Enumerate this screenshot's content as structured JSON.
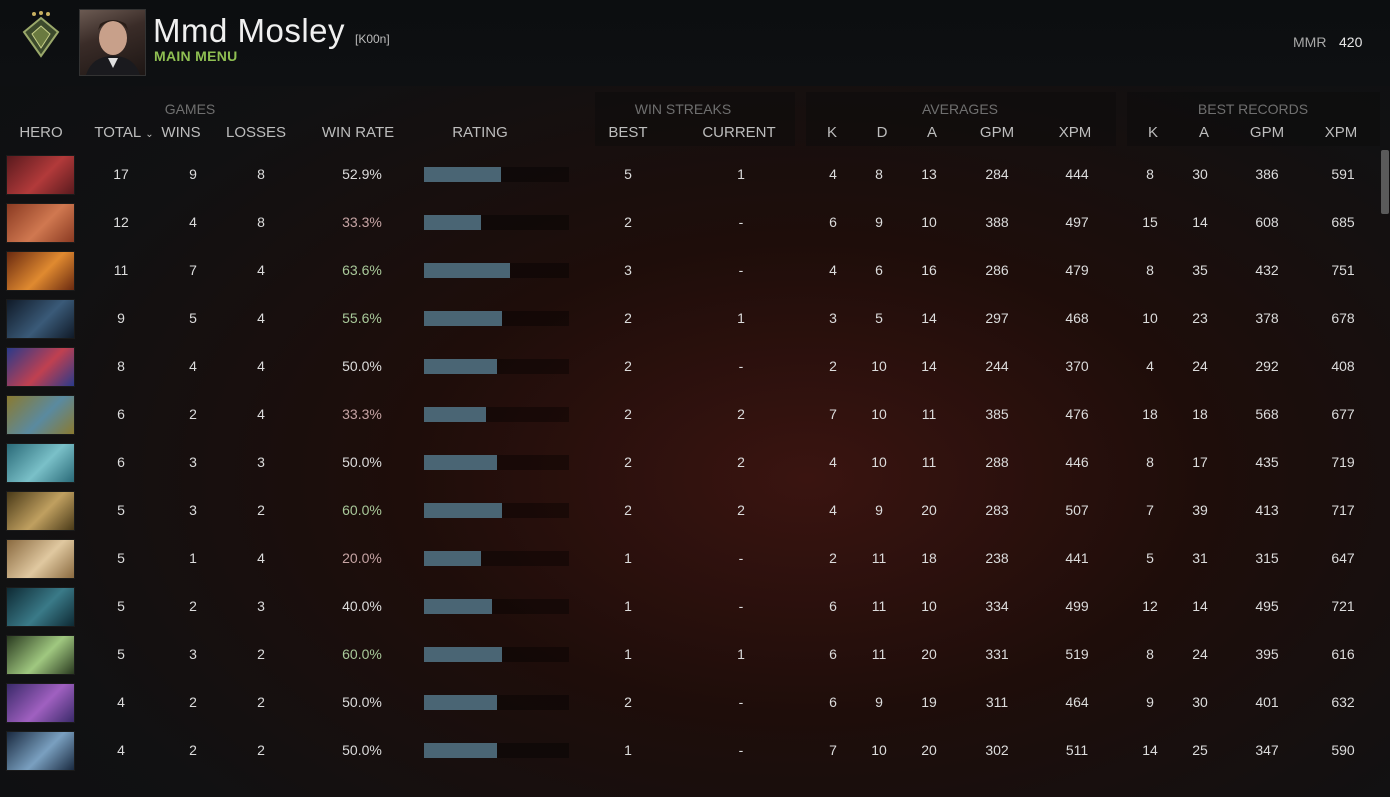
{
  "player": {
    "name": "Mmd Mosley",
    "tag": "[K00n]",
    "menu_label": "MAIN MENU",
    "mmr_label": "MMR",
    "mmr_value": "420"
  },
  "groups": {
    "games": "GAMES",
    "win_streaks": "WIN STREAKS",
    "averages": "AVERAGES",
    "best_records": "BEST RECORDS"
  },
  "columns": {
    "hero": "HERO",
    "total": "TOTAL",
    "wins": "WINS",
    "losses": "LOSSES",
    "win_rate": "WIN RATE",
    "rating": "RATING",
    "best": "BEST",
    "current": "CURRENT",
    "avg_k": "K",
    "avg_d": "D",
    "avg_a": "A",
    "avg_gpm": "GPM",
    "avg_xpm": "XPM",
    "best_k": "K",
    "best_a": "A",
    "best_gpm": "GPM",
    "best_xpm": "XPM"
  },
  "rows": [
    {
      "hero": "bloodseeker-icon",
      "colors": [
        "#5a1a1e",
        "#b23a3a"
      ],
      "total": "17",
      "wins": "9",
      "losses": "8",
      "win_rate": "52.9%",
      "wr_tone": "neutral",
      "rating": 0.53,
      "ws_best": "5",
      "ws_current": "1",
      "k": "4",
      "d": "8",
      "a": "13",
      "gpm": "284",
      "xpm": "444",
      "bk": "8",
      "ba": "30",
      "bgpm": "386",
      "bxpm": "591"
    },
    {
      "hero": "axe-icon",
      "colors": [
        "#8a3a22",
        "#d07850"
      ],
      "total": "12",
      "wins": "4",
      "losses": "8",
      "win_rate": "33.3%",
      "wr_tone": "red",
      "rating": 0.39,
      "ws_best": "2",
      "ws_current": "-",
      "k": "6",
      "d": "9",
      "a": "10",
      "gpm": "388",
      "xpm": "497",
      "bk": "15",
      "ba": "14",
      "bgpm": "608",
      "bxpm": "685"
    },
    {
      "hero": "jakiro-icon",
      "colors": [
        "#6a2a10",
        "#e08a30"
      ],
      "total": "11",
      "wins": "7",
      "losses": "4",
      "win_rate": "63.6%",
      "wr_tone": "green",
      "rating": 0.59,
      "ws_best": "3",
      "ws_current": "-",
      "k": "4",
      "d": "6",
      "a": "16",
      "gpm": "286",
      "xpm": "479",
      "bk": "8",
      "ba": "35",
      "bgpm": "432",
      "bxpm": "751"
    },
    {
      "hero": "abaddon-icon",
      "colors": [
        "#101a28",
        "#3a5a78"
      ],
      "total": "9",
      "wins": "5",
      "losses": "4",
      "win_rate": "55.6%",
      "wr_tone": "green",
      "rating": 0.54,
      "ws_best": "2",
      "ws_current": "1",
      "k": "3",
      "d": "5",
      "a": "14",
      "gpm": "297",
      "xpm": "468",
      "bk": "10",
      "ba": "23",
      "bgpm": "378",
      "bxpm": "678"
    },
    {
      "hero": "witch-doctor-icon",
      "colors": [
        "#2a3a8a",
        "#c04050"
      ],
      "total": "8",
      "wins": "4",
      "losses": "4",
      "win_rate": "50.0%",
      "wr_tone": "neutral",
      "rating": 0.5,
      "ws_best": "2",
      "ws_current": "-",
      "k": "2",
      "d": "10",
      "a": "14",
      "gpm": "244",
      "xpm": "370",
      "bk": "4",
      "ba": "24",
      "bgpm": "292",
      "bxpm": "408"
    },
    {
      "hero": "ancient-apparition-icon",
      "colors": [
        "#8a7a30",
        "#5a8aa0"
      ],
      "total": "6",
      "wins": "2",
      "losses": "4",
      "win_rate": "33.3%",
      "wr_tone": "red",
      "rating": 0.43,
      "ws_best": "2",
      "ws_current": "2",
      "k": "7",
      "d": "10",
      "a": "11",
      "gpm": "385",
      "xpm": "476",
      "bk": "18",
      "ba": "18",
      "bgpm": "568",
      "bxpm": "677"
    },
    {
      "hero": "winter-wyvern-icon",
      "colors": [
        "#2a6a78",
        "#7ac0c8"
      ],
      "total": "6",
      "wins": "3",
      "losses": "3",
      "win_rate": "50.0%",
      "wr_tone": "neutral",
      "rating": 0.5,
      "ws_best": "2",
      "ws_current": "2",
      "k": "4",
      "d": "10",
      "a": "11",
      "gpm": "288",
      "xpm": "446",
      "bk": "8",
      "ba": "17",
      "bgpm": "435",
      "bxpm": "719"
    },
    {
      "hero": "omniknight-icon",
      "colors": [
        "#4a3a18",
        "#c0a060"
      ],
      "total": "5",
      "wins": "3",
      "losses": "2",
      "win_rate": "60.0%",
      "wr_tone": "green",
      "rating": 0.54,
      "ws_best": "2",
      "ws_current": "2",
      "k": "4",
      "d": "9",
      "a": "20",
      "gpm": "283",
      "xpm": "507",
      "bk": "7",
      "ba": "39",
      "bgpm": "413",
      "bxpm": "717"
    },
    {
      "hero": "keeper-of-the-light-icon",
      "colors": [
        "#8a6a40",
        "#e0c8a0"
      ],
      "total": "5",
      "wins": "1",
      "losses": "4",
      "win_rate": "20.0%",
      "wr_tone": "red",
      "rating": 0.39,
      "ws_best": "1",
      "ws_current": "-",
      "k": "2",
      "d": "11",
      "a": "18",
      "gpm": "238",
      "xpm": "441",
      "bk": "5",
      "ba": "31",
      "bgpm": "315",
      "bxpm": "647"
    },
    {
      "hero": "phantom-assassin-icon",
      "colors": [
        "#0e2a34",
        "#3a7a88"
      ],
      "total": "5",
      "wins": "2",
      "losses": "3",
      "win_rate": "40.0%",
      "wr_tone": "neutral",
      "rating": 0.47,
      "ws_best": "1",
      "ws_current": "-",
      "k": "6",
      "d": "11",
      "a": "10",
      "gpm": "334",
      "xpm": "499",
      "bk": "12",
      "ba": "14",
      "bgpm": "495",
      "bxpm": "721"
    },
    {
      "hero": "undying-icon",
      "colors": [
        "#2a3a20",
        "#a0c880"
      ],
      "total": "5",
      "wins": "3",
      "losses": "2",
      "win_rate": "60.0%",
      "wr_tone": "green",
      "rating": 0.54,
      "ws_best": "1",
      "ws_current": "1",
      "k": "6",
      "d": "11",
      "a": "20",
      "gpm": "331",
      "xpm": "519",
      "bk": "8",
      "ba": "24",
      "bgpm": "395",
      "bxpm": "616"
    },
    {
      "hero": "dazzle-icon",
      "colors": [
        "#3a2a6a",
        "#a060c0"
      ],
      "total": "4",
      "wins": "2",
      "losses": "2",
      "win_rate": "50.0%",
      "wr_tone": "neutral",
      "rating": 0.5,
      "ws_best": "2",
      "ws_current": "-",
      "k": "6",
      "d": "9",
      "a": "19",
      "gpm": "311",
      "xpm": "464",
      "bk": "9",
      "ba": "30",
      "bgpm": "401",
      "bxpm": "632"
    },
    {
      "hero": "lich-icon",
      "colors": [
        "#1a2a40",
        "#7aa0c0"
      ],
      "total": "4",
      "wins": "2",
      "losses": "2",
      "win_rate": "50.0%",
      "wr_tone": "neutral",
      "rating": 0.5,
      "ws_best": "1",
      "ws_current": "-",
      "k": "7",
      "d": "10",
      "a": "20",
      "gpm": "302",
      "xpm": "511",
      "bk": "14",
      "ba": "25",
      "bgpm": "347",
      "bxpm": "590"
    }
  ]
}
